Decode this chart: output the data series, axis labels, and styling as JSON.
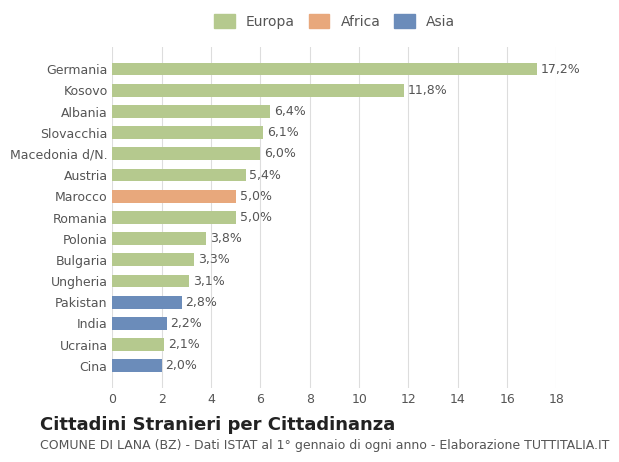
{
  "categories": [
    "Cina",
    "Ucraina",
    "India",
    "Pakistan",
    "Ungheria",
    "Bulgaria",
    "Polonia",
    "Romania",
    "Marocco",
    "Austria",
    "Macedonia d/N.",
    "Slovacchia",
    "Albania",
    "Kosovo",
    "Germania"
  ],
  "values": [
    2.0,
    2.1,
    2.2,
    2.8,
    3.1,
    3.3,
    3.8,
    5.0,
    5.0,
    5.4,
    6.0,
    6.1,
    6.4,
    11.8,
    17.2
  ],
  "colors": [
    "#6b8cba",
    "#b5c98e",
    "#6b8cba",
    "#6b8cba",
    "#b5c98e",
    "#b5c98e",
    "#b5c98e",
    "#b5c98e",
    "#e8a87c",
    "#b5c98e",
    "#b5c98e",
    "#b5c98e",
    "#b5c98e",
    "#b5c98e",
    "#b5c98e"
  ],
  "labels": [
    "2,0%",
    "2,1%",
    "2,2%",
    "2,8%",
    "3,1%",
    "3,3%",
    "3,8%",
    "5,0%",
    "5,0%",
    "5,4%",
    "6,0%",
    "6,1%",
    "6,4%",
    "11,8%",
    "17,2%"
  ],
  "legend_labels": [
    "Europa",
    "Africa",
    "Asia"
  ],
  "legend_colors": [
    "#b5c98e",
    "#e8a87c",
    "#6b8cba"
  ],
  "title": "Cittadini Stranieri per Cittadinanza",
  "subtitle": "COMUNE DI LANA (BZ) - Dati ISTAT al 1° gennaio di ogni anno - Elaborazione TUTTITALIA.IT",
  "xlabel": "",
  "xlim": [
    0,
    18
  ],
  "xticks": [
    0,
    2,
    4,
    6,
    8,
    10,
    12,
    14,
    16,
    18
  ],
  "bg_color": "#ffffff",
  "grid_color": "#dddddd",
  "bar_height": 0.6,
  "title_fontsize": 13,
  "subtitle_fontsize": 9,
  "label_fontsize": 9,
  "tick_fontsize": 9,
  "legend_fontsize": 10
}
